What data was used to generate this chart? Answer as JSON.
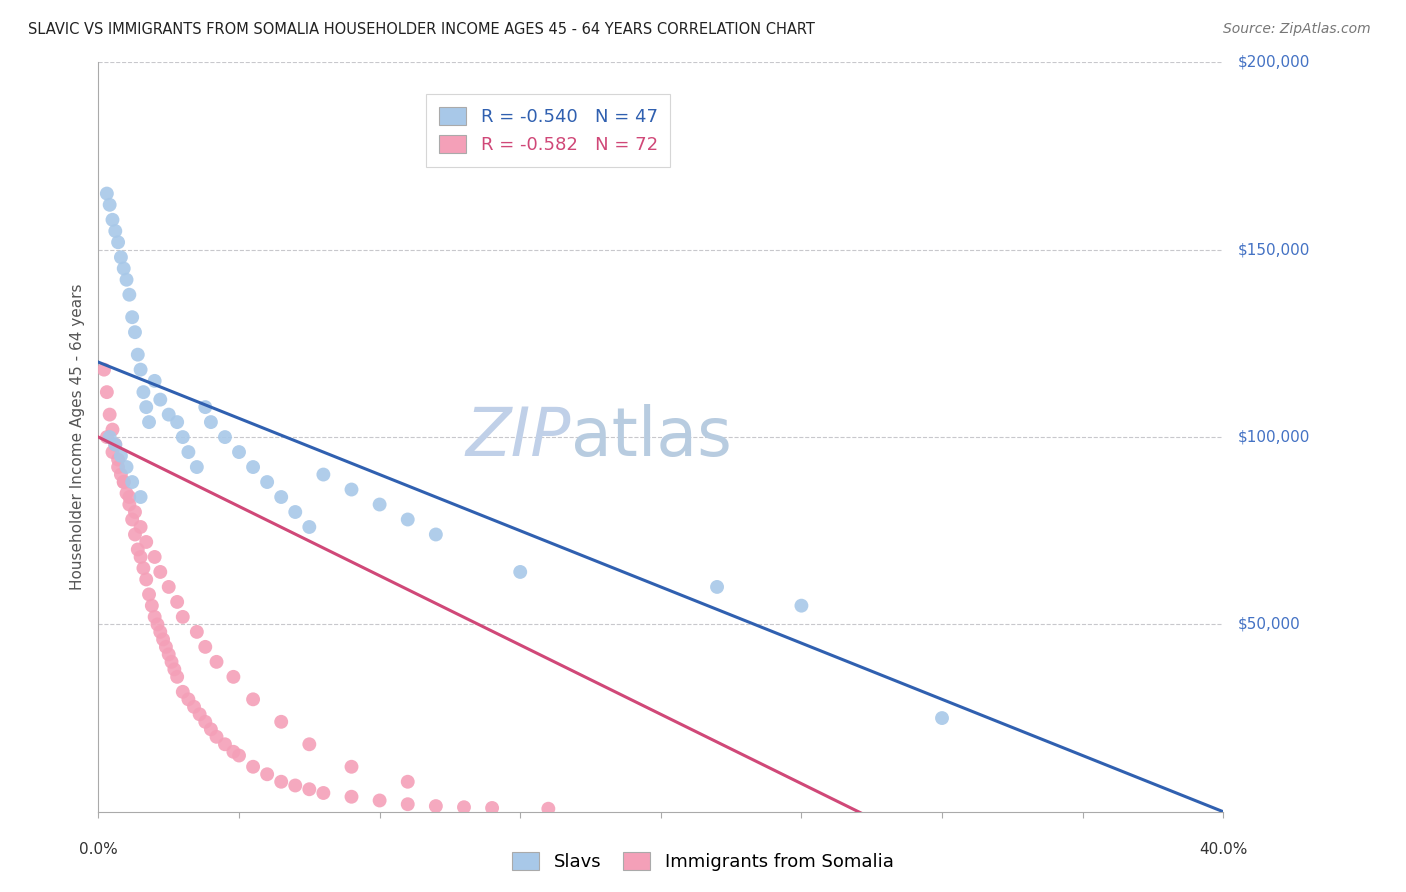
{
  "title": "SLAVIC VS IMMIGRANTS FROM SOMALIA HOUSEHOLDER INCOME AGES 45 - 64 YEARS CORRELATION CHART",
  "source": "Source: ZipAtlas.com",
  "ylabel": "Householder Income Ages 45 - 64 years",
  "xmin": 0.0,
  "xmax": 0.4,
  "ymin": 0,
  "ymax": 200000,
  "legend_blue_r": "-0.540",
  "legend_blue_n": "47",
  "legend_pink_r": "-0.582",
  "legend_pink_n": "72",
  "blue_color": "#a8c8e8",
  "blue_line_color": "#3060b0",
  "pink_color": "#f4a0b8",
  "pink_line_color": "#d04878",
  "background_color": "#ffffff",
  "grid_color": "#c8c8cc",
  "title_color": "#222222",
  "axis_label_color": "#555555",
  "right_tick_color": "#4472c4",
  "watermark_zip_color": "#c0d0e8",
  "watermark_atlas_color": "#b8cce0",
  "blue_line_intercept": 120000,
  "blue_line_slope": -300000,
  "pink_line_intercept": 100000,
  "pink_line_slope": -370000,
  "slavs_x": [
    0.003,
    0.004,
    0.005,
    0.006,
    0.007,
    0.008,
    0.009,
    0.01,
    0.011,
    0.012,
    0.013,
    0.014,
    0.015,
    0.016,
    0.017,
    0.018,
    0.02,
    0.022,
    0.025,
    0.028,
    0.03,
    0.032,
    0.035,
    0.038,
    0.04,
    0.045,
    0.05,
    0.055,
    0.06,
    0.065,
    0.07,
    0.075,
    0.08,
    0.09,
    0.1,
    0.11,
    0.12,
    0.15,
    0.22,
    0.25,
    0.3,
    0.004,
    0.006,
    0.008,
    0.01,
    0.012,
    0.015
  ],
  "slavs_y": [
    165000,
    162000,
    158000,
    155000,
    152000,
    148000,
    145000,
    142000,
    138000,
    132000,
    128000,
    122000,
    118000,
    112000,
    108000,
    104000,
    115000,
    110000,
    106000,
    104000,
    100000,
    96000,
    92000,
    108000,
    104000,
    100000,
    96000,
    92000,
    88000,
    84000,
    80000,
    76000,
    90000,
    86000,
    82000,
    78000,
    74000,
    64000,
    60000,
    55000,
    25000,
    100000,
    98000,
    95000,
    92000,
    88000,
    84000
  ],
  "somalia_x": [
    0.002,
    0.003,
    0.004,
    0.005,
    0.006,
    0.007,
    0.008,
    0.009,
    0.01,
    0.011,
    0.012,
    0.013,
    0.014,
    0.015,
    0.016,
    0.017,
    0.018,
    0.019,
    0.02,
    0.021,
    0.022,
    0.023,
    0.024,
    0.025,
    0.026,
    0.027,
    0.028,
    0.03,
    0.032,
    0.034,
    0.036,
    0.038,
    0.04,
    0.042,
    0.045,
    0.048,
    0.05,
    0.055,
    0.06,
    0.065,
    0.07,
    0.075,
    0.08,
    0.09,
    0.1,
    0.11,
    0.12,
    0.13,
    0.14,
    0.16,
    0.003,
    0.005,
    0.007,
    0.009,
    0.011,
    0.013,
    0.015,
    0.017,
    0.02,
    0.022,
    0.025,
    0.028,
    0.03,
    0.035,
    0.038,
    0.042,
    0.048,
    0.055,
    0.065,
    0.075,
    0.09,
    0.11
  ],
  "somalia_y": [
    118000,
    112000,
    106000,
    102000,
    98000,
    94000,
    90000,
    88000,
    85000,
    82000,
    78000,
    74000,
    70000,
    68000,
    65000,
    62000,
    58000,
    55000,
    52000,
    50000,
    48000,
    46000,
    44000,
    42000,
    40000,
    38000,
    36000,
    32000,
    30000,
    28000,
    26000,
    24000,
    22000,
    20000,
    18000,
    16000,
    15000,
    12000,
    10000,
    8000,
    7000,
    6000,
    5000,
    4000,
    3000,
    2000,
    1500,
    1200,
    1000,
    800,
    100000,
    96000,
    92000,
    88000,
    84000,
    80000,
    76000,
    72000,
    68000,
    64000,
    60000,
    56000,
    52000,
    48000,
    44000,
    40000,
    36000,
    30000,
    24000,
    18000,
    12000,
    8000
  ]
}
